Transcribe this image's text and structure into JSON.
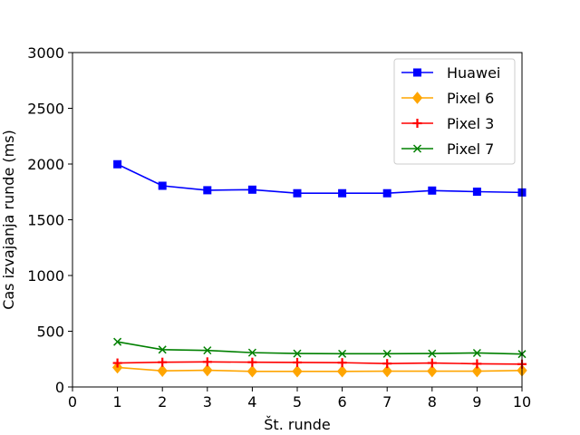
{
  "chart_data": {
    "type": "line",
    "title": "",
    "xlabel": "Št. runde",
    "ylabel": "Cas izvajanja runde (ms)",
    "xlim": [
      0,
      10
    ],
    "ylim": [
      0,
      3000
    ],
    "xticks": [
      "0",
      "1",
      "2",
      "3",
      "4",
      "5",
      "6",
      "7",
      "8",
      "9",
      "10"
    ],
    "yticks": [
      "0",
      "500",
      "1000",
      "1500",
      "2000",
      "2500",
      "3000"
    ],
    "grid": false,
    "legend_position": "top-right",
    "x": [
      1,
      2,
      3,
      4,
      5,
      6,
      7,
      8,
      9,
      10
    ],
    "series": [
      {
        "name": "Huawei",
        "color": "#0000ff",
        "marker": "square",
        "values": [
          1998,
          1805,
          1765,
          1770,
          1738,
          1738,
          1738,
          1762,
          1752,
          1745
        ]
      },
      {
        "name": "Pixel 6",
        "color": "#ffa500",
        "marker": "diamond",
        "values": [
          175,
          145,
          150,
          140,
          140,
          140,
          142,
          142,
          142,
          148
        ]
      },
      {
        "name": "Pixel 3",
        "color": "#ff0000",
        "marker": "plus",
        "values": [
          215,
          222,
          225,
          222,
          220,
          218,
          210,
          215,
          208,
          205
        ]
      },
      {
        "name": "Pixel 7",
        "color": "#008000",
        "marker": "x",
        "values": [
          405,
          335,
          328,
          308,
          300,
          298,
          298,
          300,
          305,
          295
        ]
      }
    ]
  }
}
